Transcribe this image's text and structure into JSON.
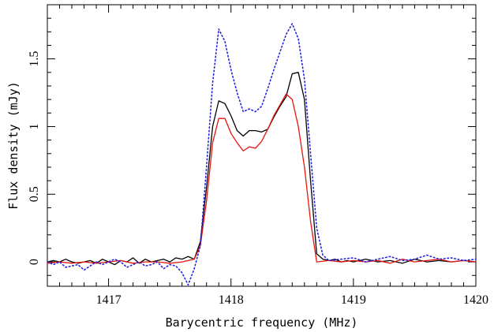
{
  "chart_data": {
    "type": "line",
    "xlabel": "Barycentric frequency (MHz)",
    "ylabel": "Flux density (mJy)",
    "xlim": [
      1416.5,
      1420.0
    ],
    "ylim": [
      -0.18,
      1.9
    ],
    "x_ticks": [
      1417,
      1418,
      1419,
      1420
    ],
    "x_tick_labels": [
      "1417",
      "1418",
      "1419",
      "1420"
    ],
    "y_ticks": [
      0,
      0.5,
      1,
      1.5
    ],
    "y_tick_labels": [
      "0",
      "0.5",
      "1",
      "1.5"
    ],
    "grid": false,
    "series": [
      {
        "color": "#000000",
        "style": "solid",
        "x": [
          1416.5,
          1416.55,
          1416.6,
          1416.65,
          1416.7,
          1416.75,
          1416.8,
          1416.85,
          1416.9,
          1416.95,
          1417.0,
          1417.05,
          1417.1,
          1417.15,
          1417.2,
          1417.25,
          1417.3,
          1417.35,
          1417.4,
          1417.45,
          1417.5,
          1417.55,
          1417.6,
          1417.65,
          1417.7,
          1417.75,
          1417.8,
          1417.85,
          1417.9,
          1417.95,
          1418.0,
          1418.05,
          1418.1,
          1418.15,
          1418.2,
          1418.25,
          1418.3,
          1418.35,
          1418.4,
          1418.45,
          1418.5,
          1418.55,
          1418.6,
          1418.65,
          1418.7,
          1418.75,
          1418.8,
          1418.85,
          1418.9,
          1418.95,
          1419.0,
          1419.1,
          1419.2,
          1419.3,
          1419.4,
          1419.5,
          1419.6,
          1419.7,
          1419.8,
          1419.9,
          1420.0
        ],
        "y": [
          0.0,
          0.01,
          0.0,
          0.02,
          0.0,
          -0.01,
          0.0,
          0.01,
          -0.01,
          0.02,
          0.0,
          -0.02,
          0.01,
          0.0,
          0.03,
          -0.01,
          0.02,
          0.0,
          0.01,
          0.02,
          0.0,
          0.03,
          0.02,
          0.04,
          0.02,
          0.15,
          0.55,
          1.0,
          1.19,
          1.17,
          1.08,
          0.97,
          0.93,
          0.97,
          0.97,
          0.96,
          0.98,
          1.07,
          1.15,
          1.22,
          1.39,
          1.4,
          1.2,
          0.6,
          0.06,
          0.02,
          0.01,
          0.02,
          0.0,
          0.01,
          0.0,
          0.02,
          0.0,
          0.01,
          -0.01,
          0.02,
          0.0,
          0.01,
          0.0,
          0.01,
          0.0
        ]
      },
      {
        "color": "#e8140e",
        "style": "solid",
        "x": [
          1416.5,
          1416.6,
          1416.7,
          1416.8,
          1416.9,
          1417.0,
          1417.1,
          1417.2,
          1417.3,
          1417.4,
          1417.5,
          1417.6,
          1417.7,
          1417.75,
          1417.8,
          1417.85,
          1417.9,
          1417.95,
          1418.0,
          1418.05,
          1418.1,
          1418.15,
          1418.2,
          1418.25,
          1418.3,
          1418.35,
          1418.4,
          1418.45,
          1418.5,
          1418.55,
          1418.6,
          1418.65,
          1418.7,
          1418.8,
          1418.9,
          1419.0,
          1419.1,
          1419.2,
          1419.3,
          1419.4,
          1419.5,
          1419.6,
          1419.7,
          1419.8,
          1419.9,
          1420.0
        ],
        "y": [
          -0.01,
          0.0,
          -0.01,
          0.0,
          -0.01,
          0.0,
          0.01,
          -0.01,
          0.0,
          0.0,
          -0.01,
          0.0,
          0.02,
          0.12,
          0.45,
          0.88,
          1.06,
          1.06,
          0.95,
          0.88,
          0.82,
          0.85,
          0.84,
          0.89,
          0.98,
          1.08,
          1.16,
          1.24,
          1.2,
          1.0,
          0.7,
          0.3,
          0.0,
          0.01,
          0.0,
          0.01,
          0.0,
          0.01,
          -0.01,
          0.02,
          0.0,
          0.01,
          0.02,
          0.0,
          0.01,
          0.0
        ]
      },
      {
        "color": "#2323e0",
        "style": "dotted",
        "x": [
          1416.5,
          1416.55,
          1416.6,
          1416.65,
          1416.7,
          1416.75,
          1416.8,
          1416.85,
          1416.9,
          1416.95,
          1417.0,
          1417.05,
          1417.1,
          1417.15,
          1417.2,
          1417.25,
          1417.3,
          1417.35,
          1417.4,
          1417.45,
          1417.5,
          1417.55,
          1417.6,
          1417.65,
          1417.7,
          1417.75,
          1417.8,
          1417.85,
          1417.9,
          1417.95,
          1418.0,
          1418.05,
          1418.1,
          1418.15,
          1418.2,
          1418.25,
          1418.3,
          1418.35,
          1418.4,
          1418.45,
          1418.5,
          1418.55,
          1418.6,
          1418.65,
          1418.7,
          1418.75,
          1418.8,
          1418.9,
          1419.0,
          1419.1,
          1419.2,
          1419.3,
          1419.4,
          1419.5,
          1419.6,
          1419.7,
          1419.8,
          1419.9,
          1420.0
        ],
        "y": [
          0.0,
          -0.02,
          0.0,
          -0.04,
          -0.03,
          -0.02,
          -0.06,
          -0.03,
          0.0,
          -0.02,
          0.0,
          0.02,
          0.0,
          -0.04,
          -0.02,
          0.0,
          -0.03,
          -0.02,
          0.0,
          -0.05,
          -0.02,
          -0.03,
          -0.08,
          -0.17,
          -0.05,
          0.12,
          0.7,
          1.32,
          1.72,
          1.63,
          1.42,
          1.25,
          1.11,
          1.13,
          1.11,
          1.15,
          1.28,
          1.42,
          1.55,
          1.68,
          1.76,
          1.65,
          1.35,
          0.8,
          0.25,
          0.05,
          0.01,
          0.02,
          0.03,
          0.0,
          0.02,
          0.04,
          0.01,
          0.02,
          0.05,
          0.02,
          0.03,
          0.01,
          0.02
        ]
      }
    ]
  }
}
